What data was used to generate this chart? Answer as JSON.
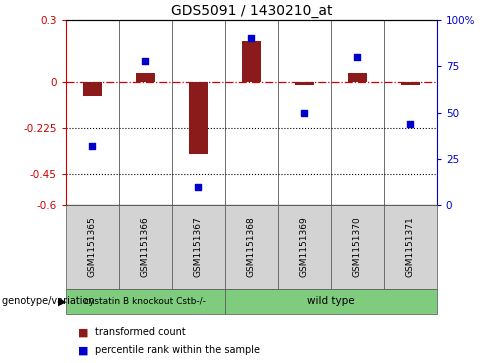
{
  "title": "GDS5091 / 1430210_at",
  "samples": [
    "GSM1151365",
    "GSM1151366",
    "GSM1151367",
    "GSM1151368",
    "GSM1151369",
    "GSM1151370",
    "GSM1151371"
  ],
  "red_values": [
    -0.07,
    0.04,
    -0.35,
    0.2,
    -0.015,
    0.04,
    -0.015
  ],
  "blue_percentiles": [
    32,
    78,
    10,
    90,
    50,
    80,
    44
  ],
  "ylim_left": [
    -0.6,
    0.3
  ],
  "ylim_right": [
    0,
    100
  ],
  "yticks_left": [
    0.3,
    0.0,
    -0.225,
    -0.45,
    -0.6
  ],
  "ytick_labels_left": [
    "0.3",
    "0",
    "-0.225",
    "-0.45",
    "-0.6"
  ],
  "yticks_right": [
    100,
    75,
    50,
    25,
    0
  ],
  "ytick_labels_right": [
    "100%",
    "75",
    "50",
    "25",
    "0"
  ],
  "hline_y": 0.0,
  "dotted_lines": [
    -0.225,
    -0.45
  ],
  "group1_label": "cystatin B knockout Cstb-/-",
  "group2_label": "wild type",
  "group1_indices": [
    0,
    1,
    2
  ],
  "group2_indices": [
    3,
    4,
    5,
    6
  ],
  "group1_color": "#7FCC7F",
  "group2_color": "#7FCC7F",
  "bar_color": "#8B1A1A",
  "dot_color": "#0000CC",
  "legend_label1": "transformed count",
  "legend_label2": "percentile rank within the sample",
  "bar_width": 0.35,
  "annotation_text": "genotype/variation",
  "left_axis_color": "#CC0000",
  "right_axis_color": "#0000CC",
  "sample_box_color": "#D3D3D3",
  "fig_width": 4.88,
  "fig_height": 3.63
}
